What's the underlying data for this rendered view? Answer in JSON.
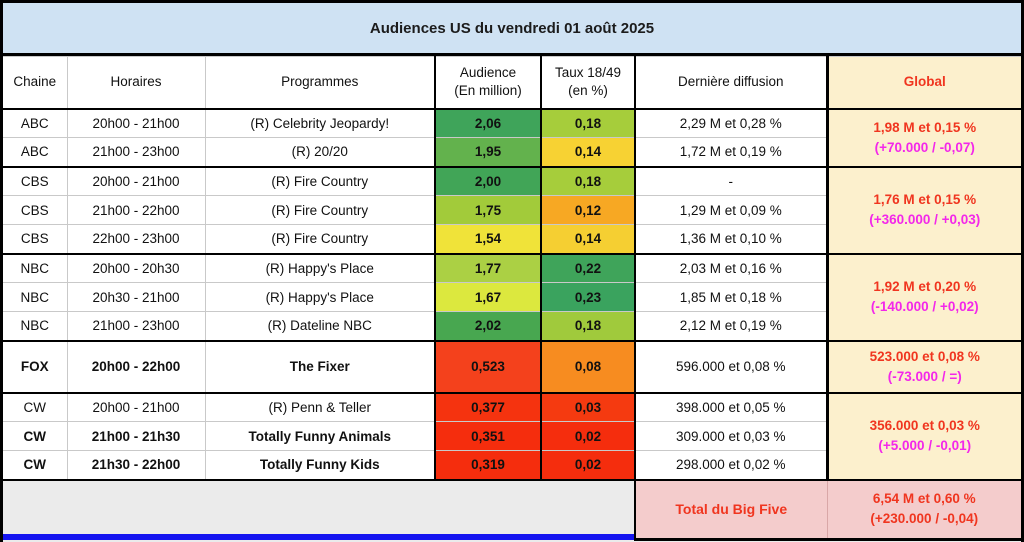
{
  "chart_data": {
    "type": "table",
    "title": "Audiences US du vendredi 01 août 2025",
    "columns": {
      "chaine": "Chaine",
      "horaires": "Horaires",
      "programmes": "Programmes",
      "audience_l1": "Audience",
      "audience_l2": "(En million)",
      "taux_l1": "Taux 18/49",
      "taux_l2": "(en %)",
      "derniere": "Dernière diffusion",
      "global": "Global"
    },
    "rows": [
      {
        "chaine": "ABC",
        "horaires": "20h00 - 21h00",
        "programme": "(R) Celebrity Jeopardy!",
        "audience": "2,06",
        "audience_bg": "#3fa45a",
        "taux": "0,18",
        "taux_bg": "#a6cd3b",
        "derniere": "2,29 M et 0,28 %"
      },
      {
        "chaine": "ABC",
        "horaires": "21h00 - 23h00",
        "programme": "(R) 20/20",
        "audience": "1,95",
        "audience_bg": "#63b24d",
        "taux": "0,14",
        "taux_bg": "#f7d233",
        "derniere": "1,72 M et 0,19 %"
      },
      {
        "chaine": "CBS",
        "horaires": "20h00 - 21h00",
        "programme": "(R) Fire Country",
        "audience": "2,00",
        "audience_bg": "#41a557",
        "taux": "0,18",
        "taux_bg": "#a6cd3b",
        "derniere": "-"
      },
      {
        "chaine": "CBS",
        "horaires": "21h00 - 22h00",
        "programme": "(R) Fire Country",
        "audience": "1,75",
        "audience_bg": "#a2cb3a",
        "taux": "0,12",
        "taux_bg": "#f7a823",
        "derniere": "1,29 M et 0,09 %"
      },
      {
        "chaine": "CBS",
        "horaires": "22h00 - 23h00",
        "programme": "(R) Fire Country",
        "audience": "1,54",
        "audience_bg": "#f0e339",
        "taux": "0,14",
        "taux_bg": "#f5cf32",
        "derniere": "1,36 M et 0,10 %"
      },
      {
        "chaine": "NBC",
        "horaires": "20h00 - 20h30",
        "programme": "(R) Happy's Place",
        "audience": "1,77",
        "audience_bg": "#abd044",
        "taux": "0,22",
        "taux_bg": "#3fa45a",
        "derniere": "2,03 M et 0,16 %"
      },
      {
        "chaine": "NBC",
        "horaires": "20h30 - 21h00",
        "programme": "(R) Happy's Place",
        "audience": "1,67",
        "audience_bg": "#dce83e",
        "taux": "0,23",
        "taux_bg": "#3aa35e",
        "derniere": "1,85 M et 0,18 %"
      },
      {
        "chaine": "NBC",
        "horaires": "21h00 - 23h00",
        "programme": "(R) Dateline NBC",
        "audience": "2,02",
        "audience_bg": "#48a750",
        "taux": "0,18",
        "taux_bg": "#a0ca3c",
        "derniere": "2,12 M et 0,19 %"
      },
      {
        "chaine": "FOX",
        "horaires": "20h00 - 22h00",
        "programme": "The Fixer",
        "audience": "0,523",
        "audience_bg": "#f4411c",
        "taux": "0,08",
        "taux_bg": "#f78c20",
        "derniere": "596.000 et 0,08 %"
      },
      {
        "chaine": "CW",
        "horaires": "20h00 - 21h00",
        "programme": "(R) Penn & Teller",
        "audience": "0,377",
        "audience_bg": "#f5330f",
        "taux": "0,03",
        "taux_bg": "#f53a10",
        "derniere": "398.000 et 0,05 %"
      },
      {
        "chaine": "CW",
        "horaires": "21h00 - 21h30",
        "programme": "Totally Funny Animals",
        "audience": "0,351",
        "audience_bg": "#f52d0d",
        "taux": "0,02",
        "taux_bg": "#f52d0d",
        "derniere": "309.000 et 0,03 %"
      },
      {
        "chaine": "CW",
        "horaires": "21h30 - 22h00",
        "programme": "Totally Funny Kids",
        "audience": "0,319",
        "audience_bg": "#f52d0d",
        "taux": "0,02",
        "taux_bg": "#f52d0d",
        "derniere": "298.000 et 0,02 %"
      }
    ],
    "globals": [
      {
        "network": "ABC",
        "line1": "1,98 M et 0,15 %",
        "line2": "(+70.000 / -0,07)"
      },
      {
        "network": "CBS",
        "line1": "1,76 M et 0,15 %",
        "line2": "(+360.000 / +0,03)"
      },
      {
        "network": "NBC",
        "line1": "1,92 M et 0,20 %",
        "line2": "(-140.000 / +0,02)"
      },
      {
        "network": "FOX",
        "line1": "523.000 et 0,08 %",
        "line2": "(-73.000 / =)"
      },
      {
        "network": "CW",
        "line1": "356.000 et 0,03 %",
        "line2": "(+5.000 / -0,01)"
      }
    ],
    "total": {
      "label": "Total du Big Five",
      "line1": "6,54 M et 0,60 %",
      "line2": "(+230.000 / -0,04)"
    }
  },
  "colors": {
    "title_bg": "#cfe2f3",
    "global_bg": "#fcf0cd",
    "total_bg": "#f4cccc",
    "red_text": "#f0351f",
    "magenta_text": "#f327ea",
    "blue_bar": "#1414f0",
    "page_bg": "#ebebeb"
  }
}
